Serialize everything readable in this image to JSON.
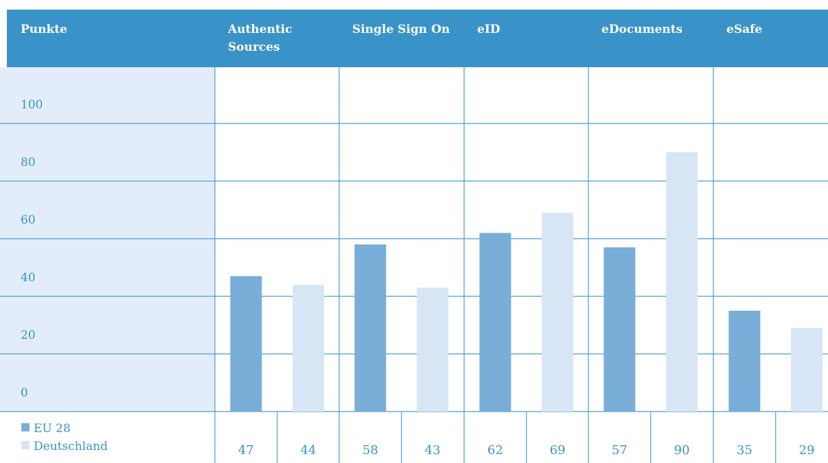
{
  "colors": {
    "header_bg": "#3a93c8",
    "header_text": "#ffffff",
    "label_panel_bg": "#e3edf9",
    "grid_line": "#4b9bd0",
    "text": "#3a93c8",
    "eu28": "#78aed8",
    "deutschland": "#d8e5f5"
  },
  "chart_data": {
    "type": "bar",
    "title": "",
    "xlabel": "",
    "ylabel": "Punkte",
    "categories": [
      [
        "Authentic",
        "Sources"
      ],
      [
        "Single Sign On"
      ],
      [
        "eID"
      ],
      [
        "eDocuments"
      ],
      [
        "eSafe"
      ]
    ],
    "series": [
      {
        "name": "EU 28",
        "values": [
          47,
          58,
          62,
          57,
          35
        ]
      },
      {
        "name": "Deutschland",
        "values": [
          44,
          43,
          69,
          90,
          29
        ]
      }
    ],
    "ylim": [
      0,
      100
    ],
    "y_ticks": [
      "0",
      "20",
      "40",
      "60",
      "80",
      "100"
    ],
    "grid": true,
    "legend_position": "bottom-left",
    "value_labels": [
      [
        "47",
        "44"
      ],
      [
        "58",
        "43"
      ],
      [
        "62",
        "69"
      ],
      [
        "57",
        "90"
      ],
      [
        "35",
        "29"
      ]
    ]
  }
}
